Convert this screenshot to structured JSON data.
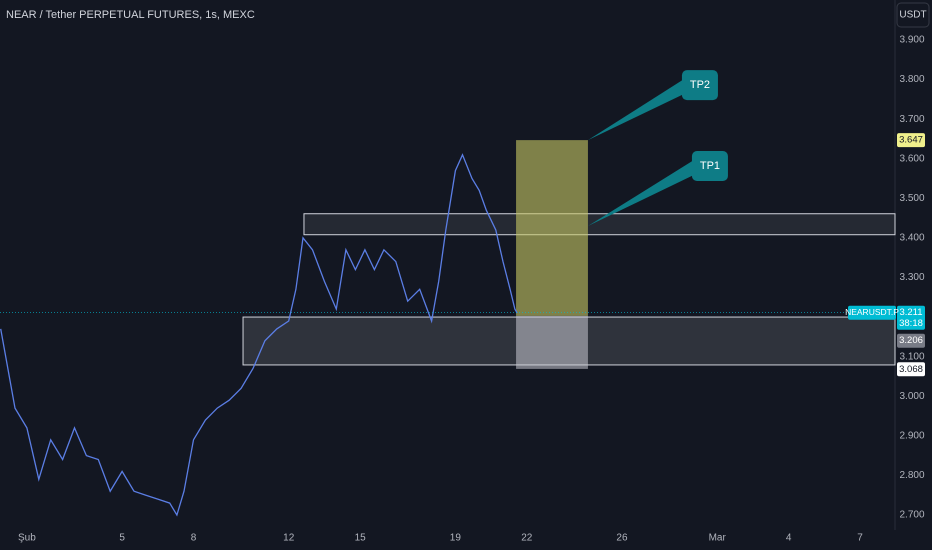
{
  "chart_data": {
    "type": "line",
    "title": "NEAR / Tether PERPETUAL FUTURES, 1s, MEXC",
    "currency": "USDT",
    "x": [
      -0.1,
      0.5,
      1,
      1.5,
      2,
      2.5,
      3,
      3.5,
      4,
      4.5,
      5,
      5.5,
      6,
      6.5,
      7,
      7.3,
      7.6,
      8,
      8.5,
      9,
      9.5,
      10,
      10.5,
      11,
      11.5,
      12,
      12.3,
      12.6,
      13,
      13.5,
      14,
      14.4,
      14.8,
      15.2,
      15.6,
      16,
      16.5,
      17,
      17.5,
      18,
      18.3,
      18.6,
      19,
      19.3,
      19.7,
      20,
      20.3,
      20.7,
      21,
      21.3,
      21.5,
      21.6
    ],
    "series": [
      {
        "name": "NEARUSDT.P",
        "color": "#5b7ee5",
        "values": [
          3.17,
          2.97,
          2.92,
          2.79,
          2.89,
          2.84,
          2.92,
          2.85,
          2.84,
          2.76,
          2.81,
          2.76,
          2.75,
          2.74,
          2.73,
          2.7,
          2.76,
          2.89,
          2.94,
          2.97,
          2.99,
          3.02,
          3.07,
          3.14,
          3.17,
          3.19,
          3.27,
          3.4,
          3.37,
          3.29,
          3.22,
          3.37,
          3.32,
          3.37,
          3.32,
          3.37,
          3.34,
          3.24,
          3.27,
          3.19,
          3.29,
          3.42,
          3.57,
          3.61,
          3.55,
          3.52,
          3.47,
          3.42,
          3.34,
          3.27,
          3.22,
          3.21
        ]
      }
    ],
    "xlim": [
      -0.13,
      37.47
    ],
    "ylim": [
      2.662,
      4.001
    ],
    "xticks": [
      {
        "value": 1,
        "label": "Şub"
      },
      5,
      8,
      12,
      15,
      19,
      22,
      26,
      {
        "value": 30,
        "label": "Mar"
      },
      {
        "value": 33,
        "label": "4"
      },
      {
        "value": 36,
        "label": "7"
      }
    ],
    "yticks": [
      {
        "value": 2.7,
        "label": "2.700"
      },
      {
        "value": 2.8,
        "label": "2.800"
      },
      {
        "value": 2.9,
        "label": "2.900"
      },
      {
        "value": 3.0,
        "label": "3.000"
      },
      {
        "value": 3.1,
        "label": "3.100"
      },
      {
        "value": 3.3,
        "label": "3.300"
      },
      {
        "value": 3.4,
        "label": "3.400"
      },
      {
        "value": 3.5,
        "label": "3.500"
      },
      {
        "value": 3.6,
        "label": "3.600"
      },
      {
        "value": 3.7,
        "label": "3.700"
      },
      {
        "value": 3.8,
        "label": "3.800"
      },
      {
        "value": 3.9,
        "label": "3.900"
      }
    ],
    "grid": false,
    "zones": [
      {
        "x": [
          12.64,
          37.47
        ],
        "y": [
          3.408,
          3.461
        ],
        "fill": "rgba(255,255,255,0.08)",
        "stroke": "#d1d4dc"
      },
      {
        "x": [
          10.08,
          37.47
        ],
        "y": [
          3.079,
          3.2
        ],
        "fill": "rgba(255,255,255,0.12)",
        "stroke": "#d1d4dc"
      },
      {
        "x": [
          21.55,
          24.57
        ],
        "y": [
          3.203,
          3.647
        ],
        "fill": "rgba(200,200,100,0.6)",
        "stroke": "none"
      },
      {
        "x": [
          21.55,
          24.57
        ],
        "y": [
          3.069,
          3.203
        ],
        "fill": "rgba(200,200,210,0.55)",
        "stroke": "none"
      }
    ],
    "annotations": [
      {
        "text": "TP2",
        "x": 24.57,
        "y": 3.647,
        "dx": 96,
        "dy": -55
      },
      {
        "text": "TP1",
        "x": 24.57,
        "y": 3.43,
        "dx": 106,
        "dy": -60
      }
    ],
    "price_labels": [
      {
        "value": 3.647,
        "color": "#f0f08c",
        "text_color": "#131722"
      },
      {
        "value": 3.211,
        "color": "#00bcd4",
        "text_color": "#ffffff"
      },
      {
        "value": 3.206,
        "color": "#787b86",
        "text_color": "#ffffff"
      },
      {
        "value": 3.068,
        "color": "#ffffff",
        "text_color": "#131722"
      }
    ],
    "countdown": "38:18"
  }
}
